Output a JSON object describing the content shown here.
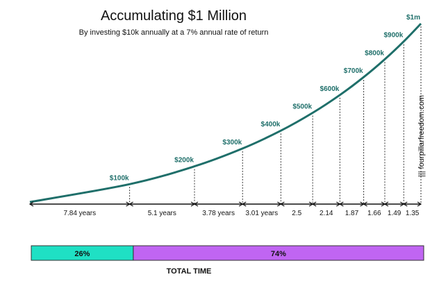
{
  "chart_data": {
    "type": "line",
    "title": "Accumulating $1 Million",
    "subtitle": "By investing $10k annually at a 7% annual rate of return",
    "series": [
      {
        "x": [
          0,
          7.84,
          12.94,
          16.72,
          19.73,
          22.23,
          24.37,
          26.24,
          27.9,
          29.39,
          30.74
        ],
        "y": [
          0,
          100000,
          200000,
          300000,
          400000,
          500000,
          600000,
          700000,
          800000,
          900000,
          1000000
        ]
      }
    ],
    "milestones": [
      {
        "label": "$100k",
        "year": 7.84,
        "value": 100000
      },
      {
        "label": "$200k",
        "year": 12.94,
        "value": 200000
      },
      {
        "label": "$300k",
        "year": 16.72,
        "value": 300000
      },
      {
        "label": "$400k",
        "year": 19.73,
        "value": 400000
      },
      {
        "label": "$500k",
        "year": 22.23,
        "value": 500000
      },
      {
        "label": "$600k",
        "year": 24.37,
        "value": 600000
      },
      {
        "label": "$700k",
        "year": 26.24,
        "value": 700000
      },
      {
        "label": "$800k",
        "year": 27.9,
        "value": 800000
      },
      {
        "label": "$900k",
        "year": 29.39,
        "value": 900000
      },
      {
        "label": "$1m",
        "year": 30.74,
        "value": 1000000
      }
    ],
    "intervals": [
      "7.84 years",
      "5.1 years",
      "3.78 years",
      "3.01 years",
      "2.5",
      "2.14",
      "1.87",
      "1.66",
      "1.49",
      "1.35"
    ],
    "xlim": [
      0,
      30.74
    ],
    "ylim": [
      0,
      1000000
    ],
    "grid": false,
    "line_color": "#1f6f6a",
    "label_color": "#1f6f6a",
    "total_time_bar": {
      "label": "TOTAL TIME",
      "segments": [
        {
          "label": "26%",
          "value": 26,
          "color": "#1fe0c4"
        },
        {
          "label": "74%",
          "value": 74,
          "color": "#c065f2"
        }
      ]
    },
    "watermark": "||| fourpillarfreedom.com"
  }
}
